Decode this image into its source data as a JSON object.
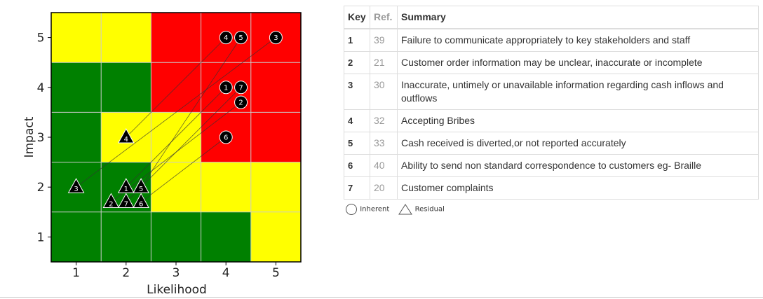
{
  "chart_data": {
    "type": "scatter",
    "title": "",
    "xlabel": "Likelihood",
    "ylabel": "Impact",
    "xticks": [
      "1",
      "2",
      "3",
      "4",
      "5"
    ],
    "yticks": [
      "1",
      "2",
      "3",
      "4",
      "5"
    ],
    "xlim": [
      0.5,
      5.5
    ],
    "ylim": [
      0.5,
      5.5
    ],
    "grid": true,
    "colors": {
      "green": "#008000",
      "yellow": "#ffff00",
      "red": "#ff0000",
      "grid": "#cccccc",
      "marker": "#000000"
    },
    "cell_colors": [
      [
        "yellow",
        "yellow",
        "red",
        "red",
        "red"
      ],
      [
        "green",
        "green",
        "red",
        "red",
        "red"
      ],
      [
        "green",
        "yellow",
        "yellow",
        "red",
        "red"
      ],
      [
        "green",
        "green",
        "yellow",
        "yellow",
        "yellow"
      ],
      [
        "green",
        "green",
        "green",
        "green",
        "yellow"
      ]
    ],
    "series": [
      {
        "name": "Inherent",
        "marker": "circle",
        "points": [
          {
            "label": "1",
            "x": 4.0,
            "y": 4.0
          },
          {
            "label": "2",
            "x": 4.3,
            "y": 3.7
          },
          {
            "label": "3",
            "x": 5.0,
            "y": 5.0
          },
          {
            "label": "4",
            "x": 4.0,
            "y": 5.0
          },
          {
            "label": "5",
            "x": 4.3,
            "y": 5.0
          },
          {
            "label": "6",
            "x": 4.0,
            "y": 3.0
          },
          {
            "label": "7",
            "x": 4.3,
            "y": 4.0
          }
        ]
      },
      {
        "name": "Residual",
        "marker": "triangle",
        "points": [
          {
            "label": "1",
            "x": 2.0,
            "y": 2.0
          },
          {
            "label": "2",
            "x": 1.7,
            "y": 1.7
          },
          {
            "label": "3",
            "x": 1.0,
            "y": 2.0
          },
          {
            "label": "4",
            "x": 2.0,
            "y": 3.0
          },
          {
            "label": "5",
            "x": 2.3,
            "y": 2.0
          },
          {
            "label": "6",
            "x": 2.3,
            "y": 1.7
          },
          {
            "label": "7",
            "x": 2.0,
            "y": 1.7
          }
        ]
      }
    ]
  },
  "table": {
    "headers": {
      "key": "Key",
      "ref": "Ref.",
      "summary": "Summary"
    },
    "rows": [
      {
        "key": "1",
        "ref": "39",
        "summary": "Failure to communicate appropriately to key stakeholders and staff"
      },
      {
        "key": "2",
        "ref": "21",
        "summary": "Customer order information may be unclear, inaccurate or incomplete"
      },
      {
        "key": "3",
        "ref": "30",
        "summary": "Inaccurate, untimely or unavailable information regarding cash inflows and outflows"
      },
      {
        "key": "4",
        "ref": "32",
        "summary": "Accepting Bribes"
      },
      {
        "key": "5",
        "ref": "33",
        "summary": "Cash received is diverted,or not reported accurately"
      },
      {
        "key": "6",
        "ref": "40",
        "summary": "Ability to send non standard correspondence to customers eg- Braille"
      },
      {
        "key": "7",
        "ref": "20",
        "summary": "Customer complaints"
      }
    ]
  },
  "legend": {
    "inherent": "Inherent",
    "residual": "Residual"
  }
}
